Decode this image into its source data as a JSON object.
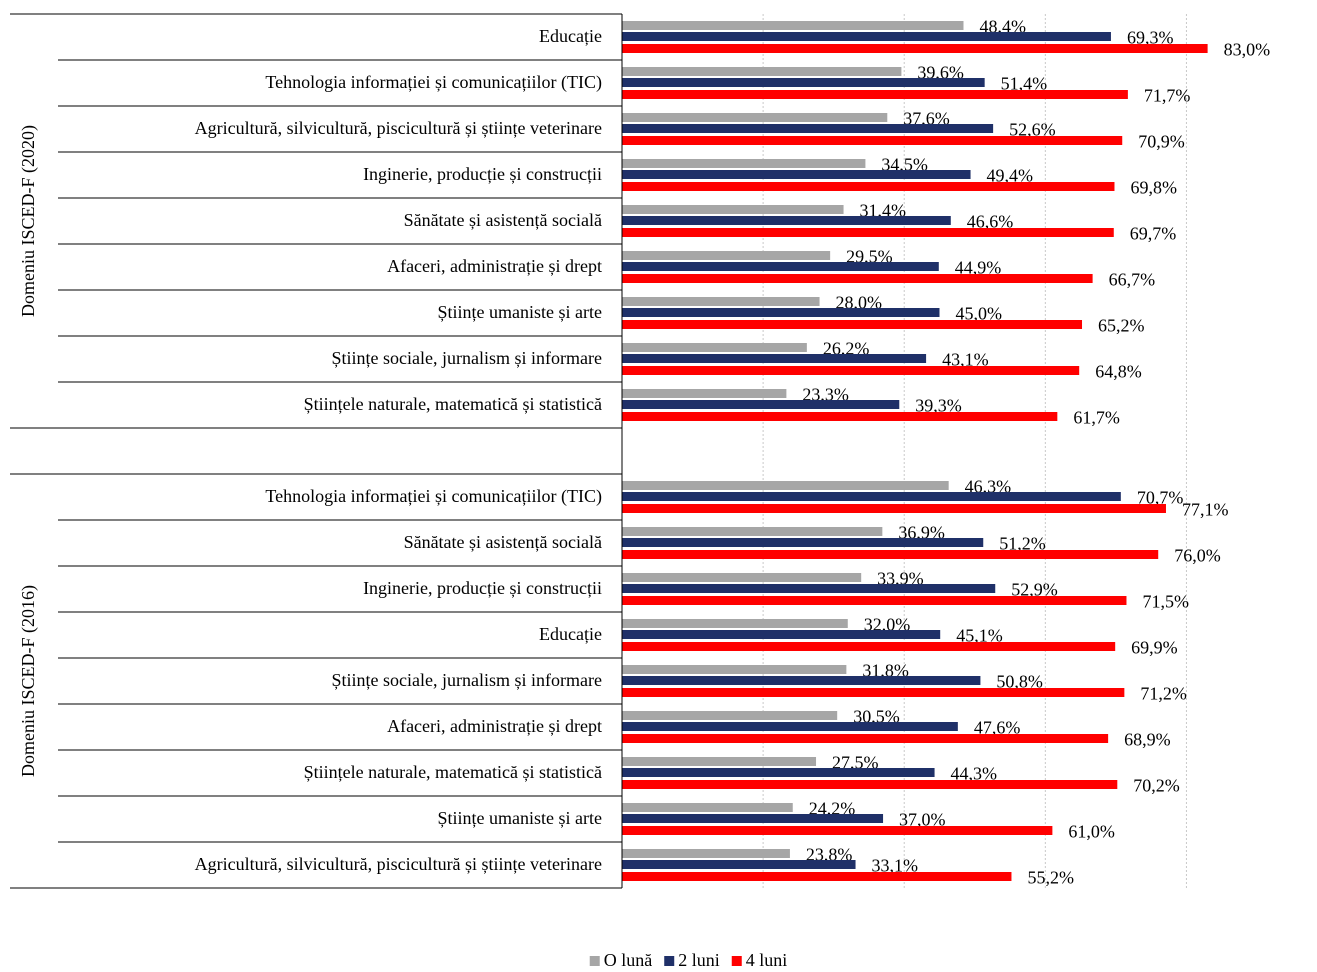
{
  "chart_data": {
    "type": "bar",
    "orientation": "horizontal",
    "xlim": [
      0,
      90
    ],
    "xticks": [
      0,
      20,
      40,
      60,
      80
    ],
    "grid": true,
    "legend": "bottom",
    "series": [
      {
        "name": "O lună",
        "color": "#a6a6a6"
      },
      {
        "name": "2 luni",
        "color": "#1f3068"
      },
      {
        "name": "4 luni",
        "color": "#ff0000"
      }
    ],
    "groups": [
      {
        "name": "Domeniu ISCED-F (2020)",
        "categories": [
          "Educație",
          "Tehnologia informației și comunicațiilor (TIC)",
          "Agricultură, silvicultură, piscicultură și științe veterinare",
          "Inginerie, producție și construcții",
          "Sănătate și asistență socială",
          "Afaceri, administrație și drept",
          "Științe umaniste și arte",
          "Științe sociale, jurnalism și informare",
          "Științele naturale, matematică și statistică"
        ],
        "series": [
          {
            "values": [
              48.4,
              39.6,
              37.6,
              34.5,
              31.4,
              29.5,
              28.0,
              26.2,
              23.3
            ],
            "value_labels": [
              "48,4%",
              "39,6%",
              "37,6%",
              "34,5%",
              "31,4%",
              "29,5%",
              "28,0%",
              "26,2%",
              "23,3%"
            ]
          },
          {
            "values": [
              69.3,
              51.4,
              52.6,
              49.4,
              46.6,
              44.9,
              45.0,
              43.1,
              39.3
            ],
            "value_labels": [
              "69,3%",
              "51,4%",
              "52,6%",
              "49,4%",
              "46,6%",
              "44,9%",
              "45,0%",
              "43,1%",
              "39,3%"
            ]
          },
          {
            "values": [
              83.0,
              71.7,
              70.9,
              69.8,
              69.7,
              66.7,
              65.2,
              64.8,
              61.7
            ],
            "value_labels": [
              "83,0%",
              "71,7%",
              "70,9%",
              "69,8%",
              "69,7%",
              "66,7%",
              "65,2%",
              "64,8%",
              "61,7%"
            ]
          }
        ]
      },
      {
        "name": "Domeniu ISCED-F (2016)",
        "categories": [
          "Tehnologia informației și comunicațiilor (TIC)",
          "Sănătate și asistență socială",
          "Inginerie, producție și construcții",
          "Educație",
          "Științe sociale, jurnalism și informare",
          "Afaceri, administrație și drept",
          "Științele naturale, matematică și statistică",
          "Științe umaniste și arte",
          "Agricultură, silvicultură, piscicultură și științe veterinare"
        ],
        "series": [
          {
            "values": [
              46.3,
              36.9,
              33.9,
              32.0,
              31.8,
              30.5,
              27.5,
              24.2,
              23.8
            ],
            "value_labels": [
              "46,3%",
              "36,9%",
              "33,9%",
              "32,0%",
              "31,8%",
              "30,5%",
              "27,5%",
              "24,2%",
              "23,8%"
            ]
          },
          {
            "values": [
              70.7,
              51.2,
              52.9,
              45.1,
              50.8,
              47.6,
              44.3,
              37.0,
              33.1
            ],
            "value_labels": [
              "70,7%",
              "51,2%",
              "52,9%",
              "45,1%",
              "50,8%",
              "47,6%",
              "44,3%",
              "37,0%",
              "33,1%"
            ]
          },
          {
            "values": [
              77.1,
              76.0,
              71.5,
              69.9,
              71.2,
              68.9,
              70.2,
              61.0,
              55.2
            ],
            "value_labels": [
              "77,1%",
              "76,0%",
              "71,5%",
              "69,9%",
              "71,2%",
              "68,9%",
              "70,2%",
              "61,0%",
              "55,2%"
            ]
          }
        ]
      }
    ]
  }
}
